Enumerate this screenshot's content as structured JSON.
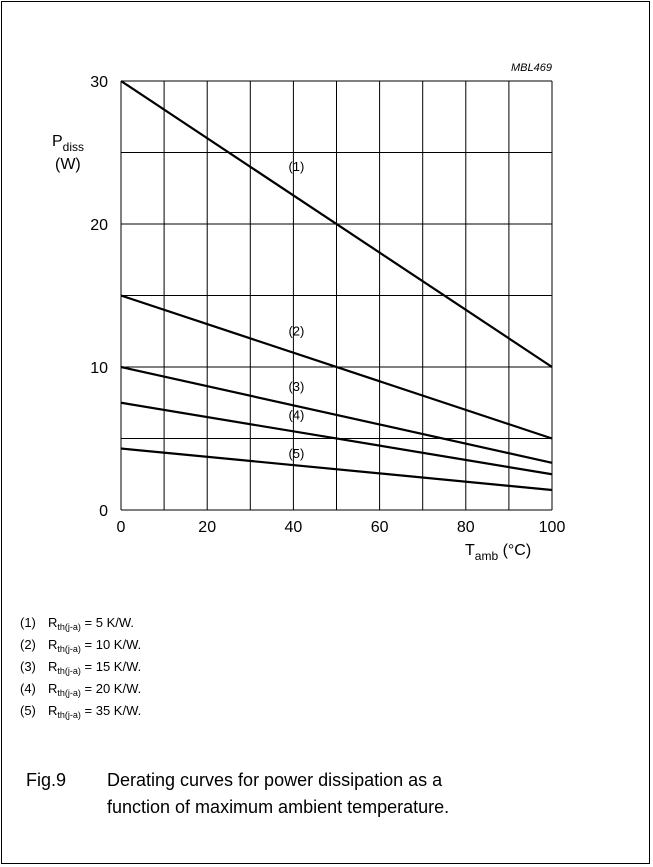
{
  "chart_data": {
    "type": "line",
    "code": "MBL469",
    "ylabel": {
      "main": "P",
      "sub": "diss",
      "unit": "(W)"
    },
    "xlabel": {
      "main": "T",
      "sub": "amb",
      "unit": "(°C)"
    },
    "xlim": [
      0,
      100
    ],
    "ylim": [
      0,
      30
    ],
    "xticks": [
      "0",
      "20",
      "40",
      "60",
      "80",
      "100"
    ],
    "yticks": [
      "0",
      "10",
      "20",
      "30"
    ],
    "grid": true,
    "x_gridlines": [
      0,
      10,
      20,
      30,
      40,
      50,
      60,
      70,
      80,
      90,
      100
    ],
    "y_gridlines": [
      0,
      5,
      10,
      15,
      20,
      25,
      30
    ],
    "series": [
      {
        "name": "(1)",
        "x": [
          0,
          100
        ],
        "y": [
          30,
          10
        ],
        "label_at": [
          37,
          24
        ]
      },
      {
        "name": "(2)",
        "x": [
          0,
          100
        ],
        "y": [
          15,
          5
        ],
        "label_at": [
          37,
          12.5
        ]
      },
      {
        "name": "(3)",
        "x": [
          0,
          100
        ],
        "y": [
          10,
          3.3
        ],
        "label_at": [
          37,
          8.6
        ]
      },
      {
        "name": "(4)",
        "x": [
          0,
          100
        ],
        "y": [
          7.5,
          2.5
        ],
        "label_at": [
          37,
          6.6
        ]
      },
      {
        "name": "(5)",
        "x": [
          0,
          100
        ],
        "y": [
          4.3,
          1.4
        ],
        "label_at": [
          37,
          3.9
        ]
      }
    ]
  },
  "notes": [
    {
      "num": "(1)",
      "r": "R",
      "sub": "th(j-a)",
      "value": "= 5 K/W."
    },
    {
      "num": "(2)",
      "r": "R",
      "sub": "th(j-a)",
      "value": "= 10 K/W."
    },
    {
      "num": "(3)",
      "r": "R",
      "sub": "th(j-a)",
      "value": "= 15 K/W."
    },
    {
      "num": "(4)",
      "r": "R",
      "sub": "th(j-a)",
      "value": "= 20 K/W."
    },
    {
      "num": "(5)",
      "r": "R",
      "sub": "th(j-a)",
      "value": "= 35 K/W."
    }
  ],
  "caption": {
    "fig": "Fig.9",
    "line1": "Derating curves for power dissipation as a",
    "line2": "function of maximum ambient temperature."
  }
}
